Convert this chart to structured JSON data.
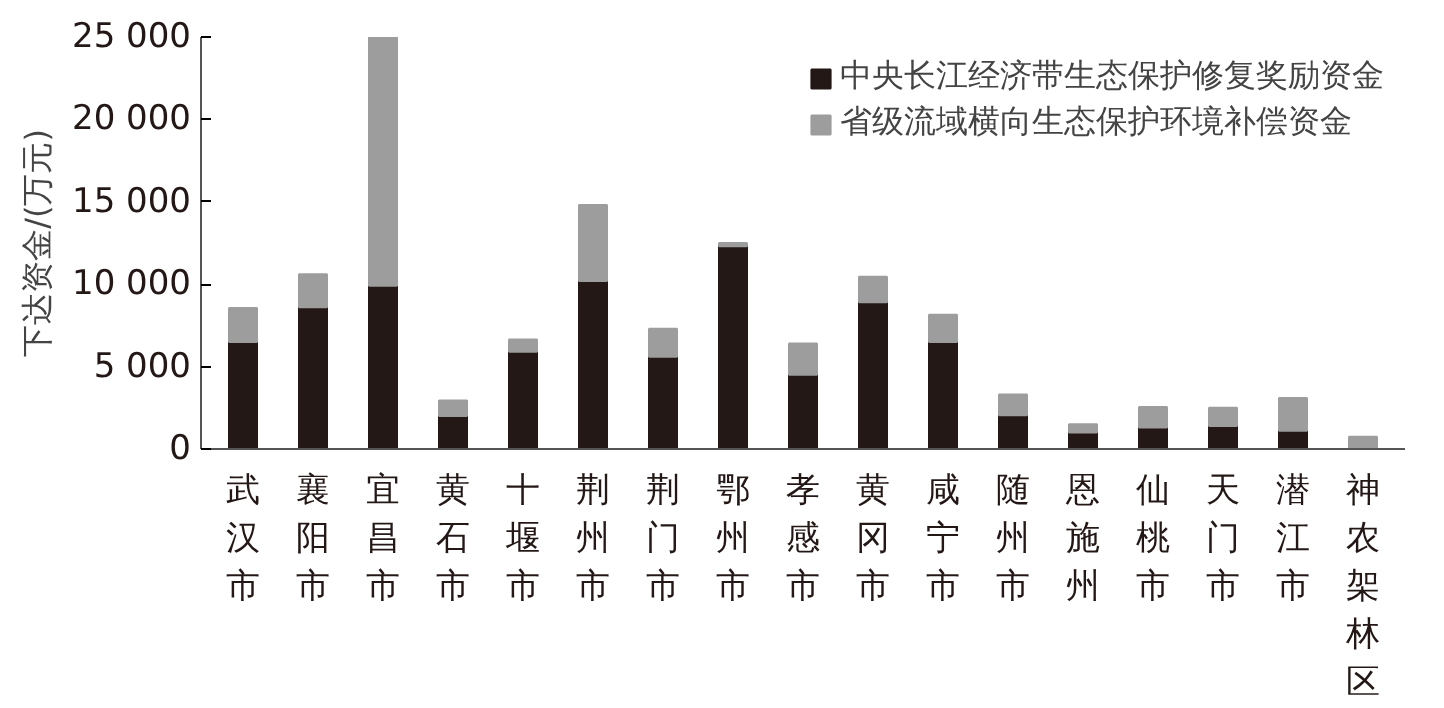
{
  "chart_data": {
    "type": "bar",
    "stacked": true,
    "ylabel": "下达资金/(万元)",
    "categories": [
      "武汉市",
      "襄阳市",
      "宜昌市",
      "黄石市",
      "十堰市",
      "荆州市",
      "荆门市",
      "鄂州市",
      "孝感市",
      "黄冈市",
      "咸宁市",
      "随州市",
      "恩施州",
      "仙桃市",
      "天门市",
      "潜江市",
      "神农架林区"
    ],
    "series": [
      {
        "name": "中央长江经济带生态保护修复奖励资金",
        "color": "#231815",
        "values": [
          6500,
          8600,
          9900,
          2000,
          5900,
          10200,
          5600,
          12300,
          4500,
          8900,
          6500,
          2050,
          1000,
          1300,
          1400,
          1100,
          0
        ]
      },
      {
        "name": "省级流域横向生态保护环境补偿资金",
        "color": "#9d9d9d",
        "values": [
          2050,
          2000,
          15100,
          950,
          750,
          4600,
          1700,
          200,
          1900,
          1550,
          1650,
          1250,
          500,
          1250,
          1100,
          2000,
          750
        ]
      }
    ],
    "ylim": [
      0,
      25000
    ],
    "yticks": [
      0,
      {
        "value": 5000,
        "label": "5 000"
      },
      {
        "value": 10000,
        "label": "10 000"
      },
      {
        "value": 15000,
        "label": "15 000"
      },
      {
        "value": 20000,
        "label": "20 000"
      },
      {
        "value": 25000,
        "label": "25 000"
      }
    ],
    "grid": false,
    "legend": "top right"
  }
}
